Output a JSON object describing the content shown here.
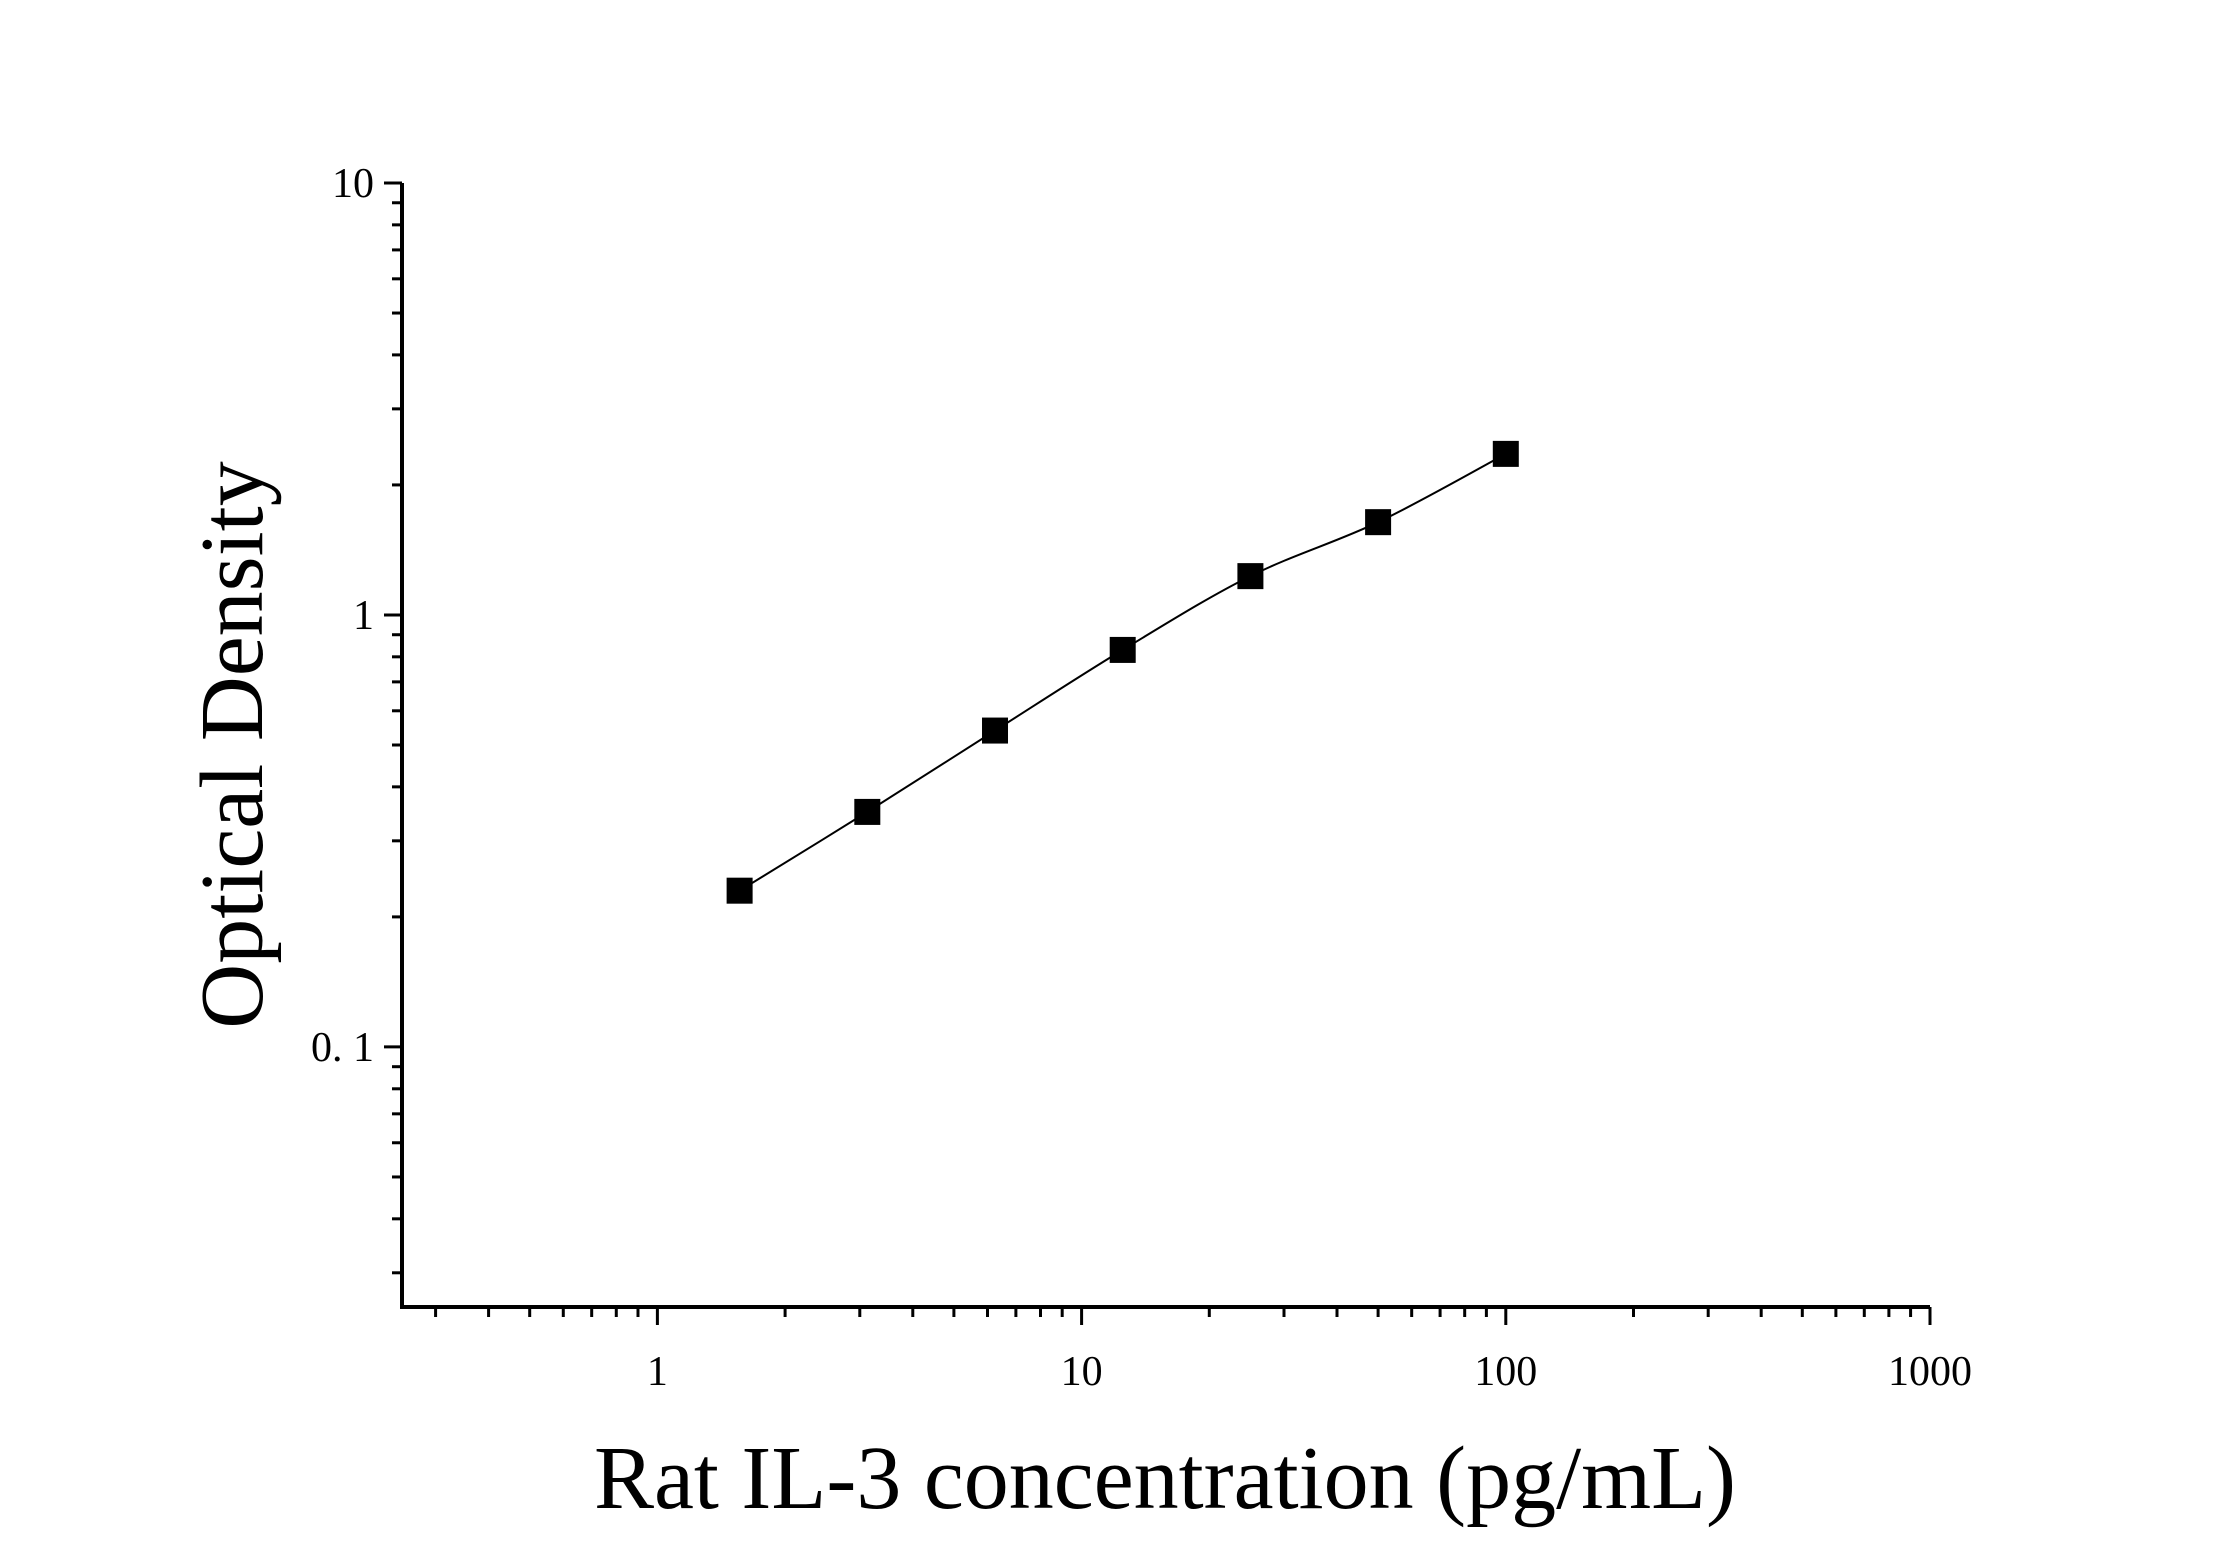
{
  "chart_data": {
    "type": "scatter",
    "title": "",
    "xlabel": "Rat IL-3 concentration (pg/mL)",
    "ylabel": "Optical Density",
    "x_scale": "log",
    "y_scale": "log",
    "xlim": [
      0.25,
      1000
    ],
    "ylim": [
      0.025,
      10
    ],
    "x_ticks": [
      {
        "value": 1,
        "label": "1"
      },
      {
        "value": 10,
        "label": "10"
      },
      {
        "value": 100,
        "label": "100"
      },
      {
        "value": 1000,
        "label": "1000"
      }
    ],
    "y_ticks": [
      {
        "value": 0.1,
        "label": "0. 1"
      },
      {
        "value": 1,
        "label": "1"
      },
      {
        "value": 10,
        "label": "10"
      }
    ],
    "grid": false,
    "legend": "none",
    "marker": "square",
    "fit_line": true,
    "color": "#000000",
    "series": [
      {
        "x": [
          1.5625,
          3.125,
          6.25,
          12.5,
          25,
          50,
          100
        ],
        "y": [
          0.23,
          0.35,
          0.54,
          0.83,
          1.23,
          1.64,
          2.36
        ]
      }
    ]
  }
}
